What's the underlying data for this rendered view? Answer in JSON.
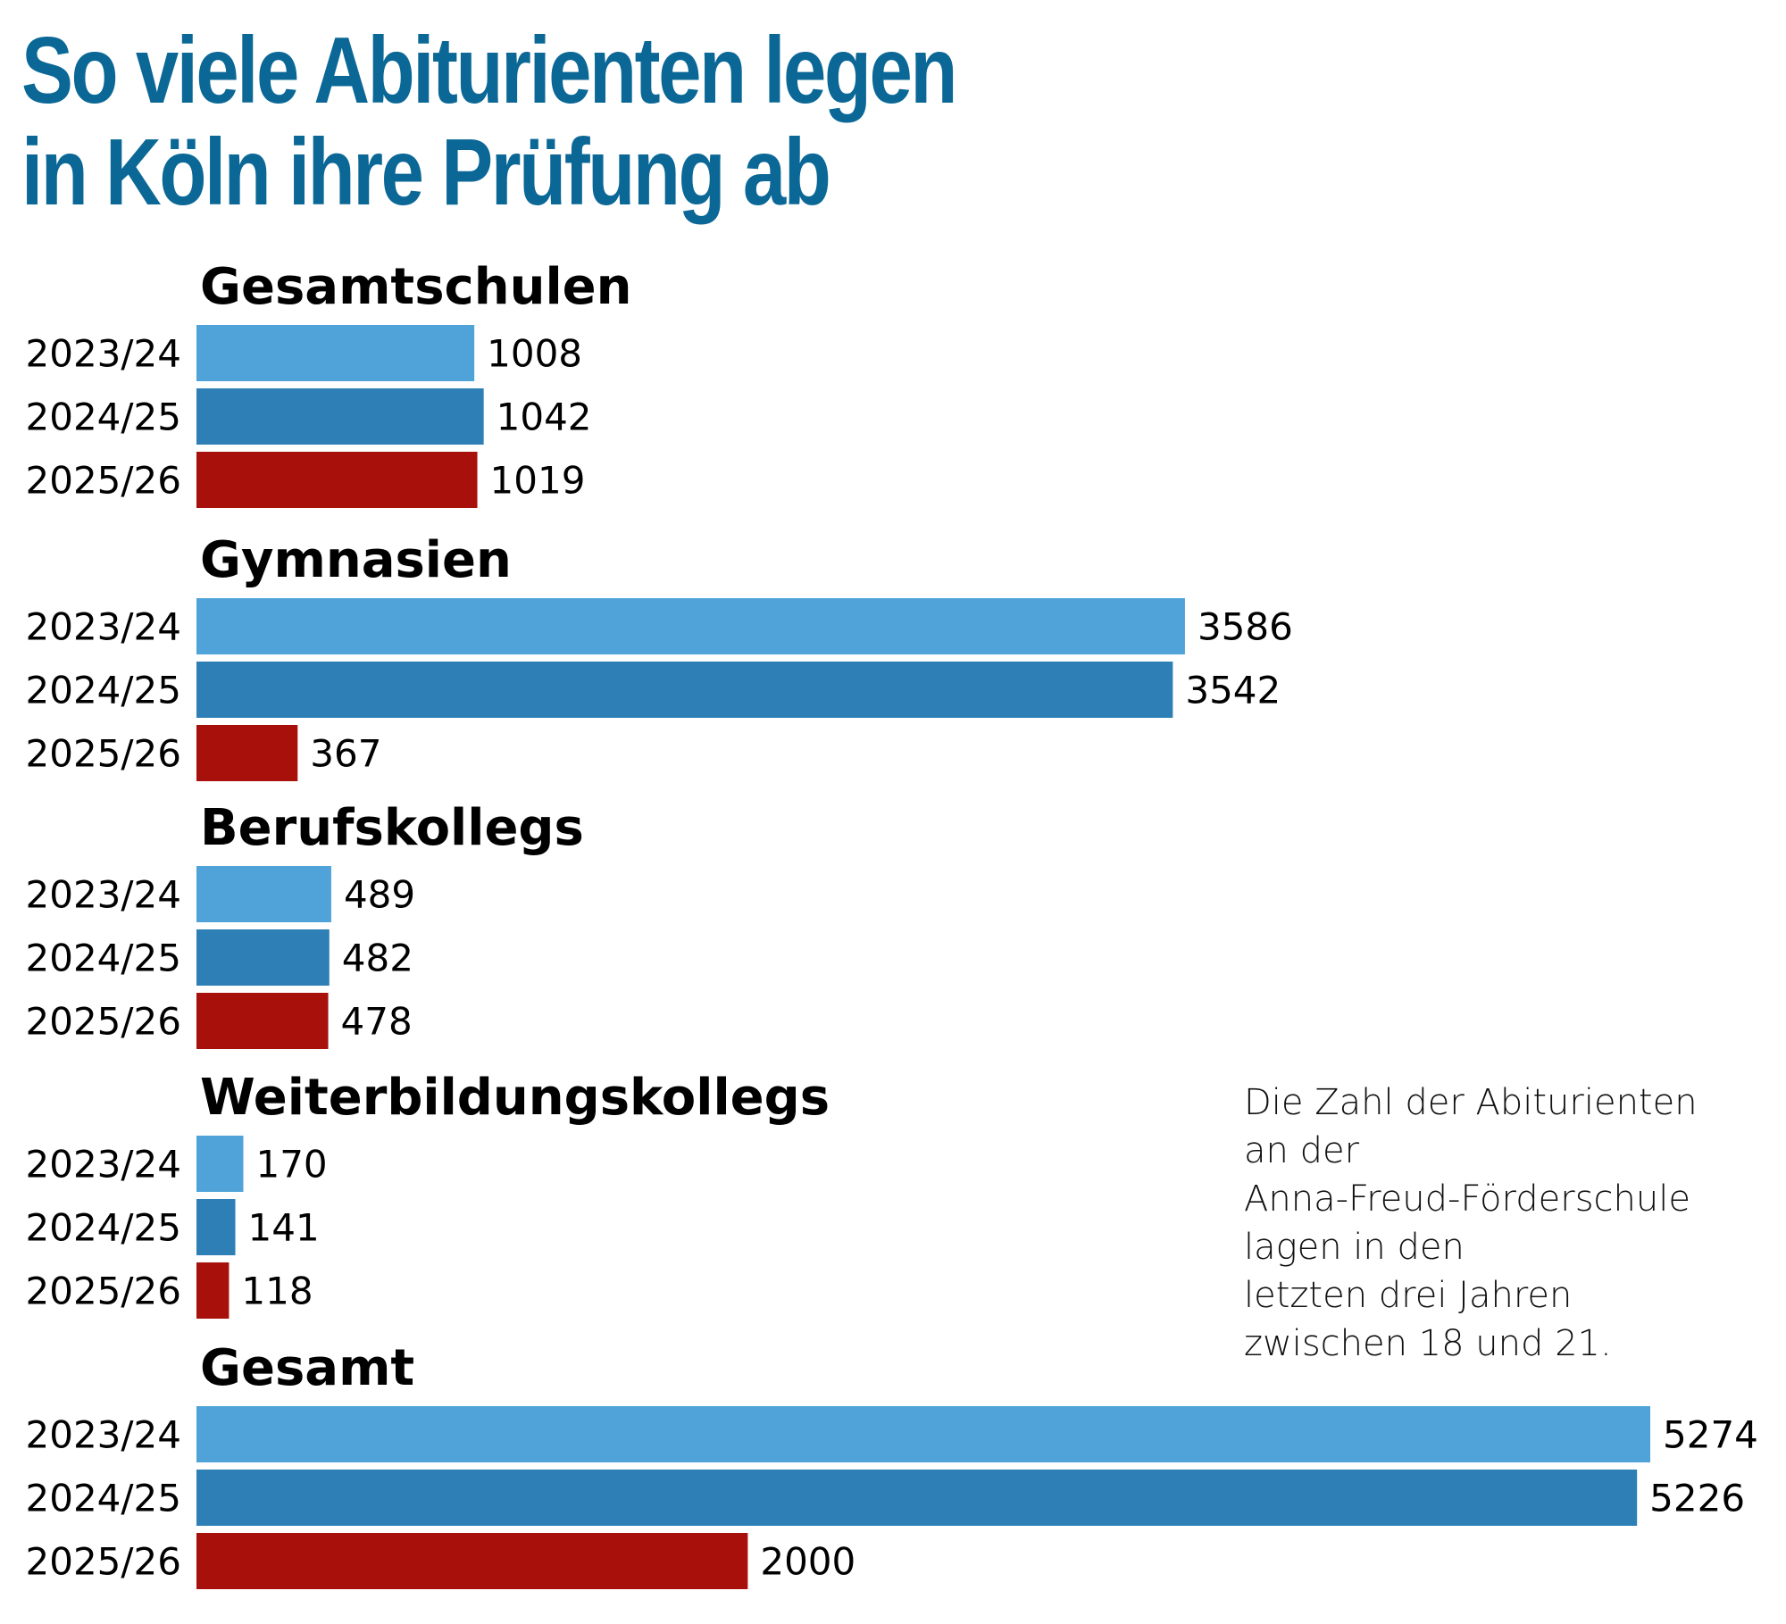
{
  "title_lines": [
    "So viele Abiturienten legen",
    "in Köln ihre Prüfung ab"
  ],
  "note_lines": [
    "Die Zahl der Abiturienten",
    "an der",
    "Anna-Freud-Förderschule",
    "lagen in den",
    "letzten drei Jahren",
    "zwischen 18 und 21."
  ],
  "colors": {
    "2023/24": "#4fa3d8",
    "2024/25": "#2d7fb6",
    "2025/26": "#a8100b",
    "title": "#0b6896"
  },
  "chart_data": {
    "type": "bar",
    "orientation": "horizontal",
    "title": "So viele Abiturienten legen in Köln ihre Prüfung ab",
    "xlabel": "",
    "ylabel": "",
    "grid": false,
    "xlim": [
      0,
      5274
    ],
    "series_names": [
      "2023/24",
      "2024/25",
      "2025/26"
    ],
    "groups": [
      {
        "name": "Gesamtschulen",
        "categories": [
          "2023/24",
          "2024/25",
          "2025/26"
        ],
        "values": [
          1008,
          1042,
          1019
        ]
      },
      {
        "name": "Gymnasien",
        "categories": [
          "2023/24",
          "2024/25",
          "2025/26"
        ],
        "values": [
          3586,
          3542,
          367
        ]
      },
      {
        "name": "Berufskollegs",
        "categories": [
          "2023/24",
          "2024/25",
          "2025/26"
        ],
        "values": [
          489,
          482,
          478
        ]
      },
      {
        "name": "Weiterbildungskollegs",
        "categories": [
          "2023/24",
          "2024/25",
          "2025/26"
        ],
        "values": [
          170,
          141,
          118
        ]
      },
      {
        "name": "Gesamt",
        "categories": [
          "2023/24",
          "2024/25",
          "2025/26"
        ],
        "values": [
          5274,
          5226,
          2000
        ]
      }
    ],
    "annotation": "Die Zahl der Abiturienten an der Anna-Freud-Förderschule lagen in den letzten drei Jahren zwischen 18 und 21."
  }
}
